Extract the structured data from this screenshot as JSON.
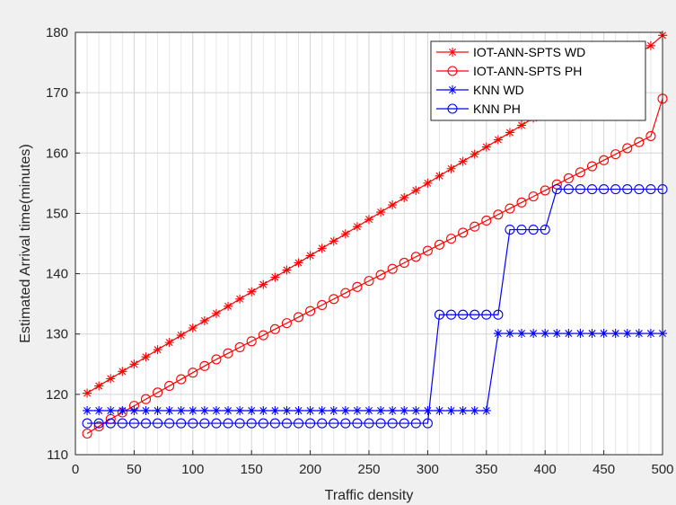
{
  "chart_data": {
    "type": "line",
    "title": "",
    "xlabel": "Traffic density",
    "ylabel": "Estimated Arrival time(minutes)",
    "xlim": [
      0,
      500
    ],
    "ylim": [
      110,
      180
    ],
    "xticks": [
      0,
      50,
      100,
      150,
      200,
      250,
      300,
      350,
      400,
      450,
      500
    ],
    "yticks": [
      110,
      120,
      130,
      140,
      150,
      160,
      170,
      180
    ],
    "x_minor_step": 10,
    "grid": true,
    "legend_position": "top-right",
    "x": [
      10,
      20,
      30,
      40,
      50,
      60,
      70,
      80,
      90,
      100,
      110,
      120,
      130,
      140,
      150,
      160,
      170,
      180,
      190,
      200,
      210,
      220,
      230,
      240,
      250,
      260,
      270,
      280,
      290,
      300,
      310,
      320,
      330,
      340,
      350,
      360,
      370,
      380,
      390,
      400,
      410,
      420,
      430,
      440,
      450,
      460,
      470,
      480,
      490,
      500
    ],
    "series": [
      {
        "name": "IOT-ANN-SPTS WD",
        "color": "#ff0000",
        "marker": "star",
        "values": [
          120.2,
          121.4,
          122.6,
          123.8,
          125,
          126.2,
          127.4,
          128.6,
          129.8,
          131,
          132.2,
          133.4,
          134.6,
          135.8,
          137,
          138.2,
          139.4,
          140.6,
          141.8,
          143,
          144.2,
          145.4,
          146.6,
          147.8,
          149,
          150.2,
          151.4,
          152.6,
          153.8,
          155,
          156.2,
          157.4,
          158.6,
          159.8,
          161,
          162.2,
          163.4,
          164.6,
          165.8,
          167,
          168.2,
          169.4,
          170.6,
          171.8,
          173,
          174.2,
          175.4,
          176.6,
          177.8,
          179.5
        ]
      },
      {
        "name": "IOT-ANN-SPTS PH",
        "color": "#ff0000",
        "marker": "circle",
        "values": [
          113.5,
          114.7,
          115.9,
          117,
          118.1,
          119.2,
          120.3,
          121.4,
          122.5,
          123.6,
          124.7,
          125.8,
          126.8,
          127.8,
          128.8,
          129.8,
          130.8,
          131.8,
          132.8,
          133.8,
          134.8,
          135.8,
          136.8,
          137.8,
          138.8,
          139.8,
          140.8,
          141.8,
          142.8,
          143.8,
          144.8,
          145.8,
          146.8,
          147.8,
          148.8,
          149.8,
          150.8,
          151.8,
          152.8,
          153.8,
          154.8,
          155.8,
          156.8,
          157.8,
          158.8,
          159.8,
          160.8,
          161.8,
          162.8,
          169
        ]
      },
      {
        "name": "KNN WD",
        "color": "#0000ff",
        "marker": "star",
        "values": [
          117.3,
          117.3,
          117.3,
          117.3,
          117.3,
          117.3,
          117.3,
          117.3,
          117.3,
          117.3,
          117.3,
          117.3,
          117.3,
          117.3,
          117.3,
          117.3,
          117.3,
          117.3,
          117.3,
          117.3,
          117.3,
          117.3,
          117.3,
          117.3,
          117.3,
          117.3,
          117.3,
          117.3,
          117.3,
          117.3,
          117.3,
          117.3,
          117.3,
          117.3,
          117.3,
          130.1,
          130.1,
          130.1,
          130.1,
          130.1,
          130.1,
          130.1,
          130.1,
          130.1,
          130.1,
          130.1,
          130.1,
          130.1,
          130.1,
          130.1
        ]
      },
      {
        "name": "KNN PH",
        "color": "#0000ff",
        "marker": "circle",
        "values": [
          115.2,
          115.2,
          115.2,
          115.2,
          115.2,
          115.2,
          115.2,
          115.2,
          115.2,
          115.2,
          115.2,
          115.2,
          115.2,
          115.2,
          115.2,
          115.2,
          115.2,
          115.2,
          115.2,
          115.2,
          115.2,
          115.2,
          115.2,
          115.2,
          115.2,
          115.2,
          115.2,
          115.2,
          115.2,
          115.2,
          133.2,
          133.2,
          133.2,
          133.2,
          133.2,
          133.2,
          147.3,
          147.3,
          147.3,
          147.3,
          154,
          154,
          154,
          154,
          154,
          154,
          154,
          154,
          154,
          154
        ]
      }
    ]
  }
}
